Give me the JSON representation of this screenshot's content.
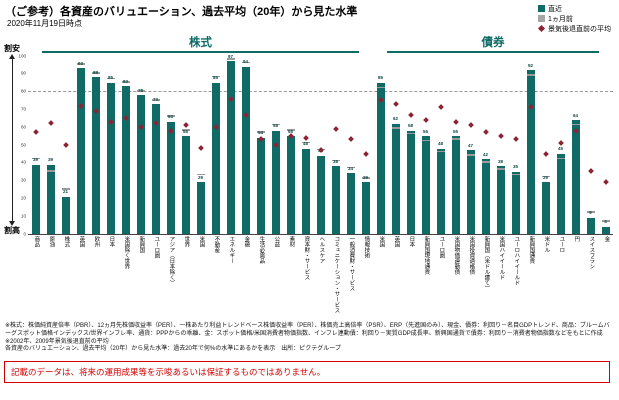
{
  "title": "（ご参考）各資産のバリュエーション、過去平均（20年）から見た水準",
  "date": "2020年11月19日時点",
  "legend": {
    "items": [
      {
        "label": "直近",
        "color": "#106b66",
        "shape": "square"
      },
      {
        "label": "1ヵ月前",
        "color": "#a6a6a6",
        "shape": "square"
      },
      {
        "label": "景気後退直前の平均",
        "color": "#8b2332",
        "shape": "diamond"
      }
    ]
  },
  "axis": {
    "cheap_label": "割安",
    "expensive_label": "割高",
    "ymin": 0,
    "ymax": 100,
    "ticks": [
      0,
      10,
      20,
      30,
      40,
      50,
      60,
      70,
      80,
      90,
      100
    ],
    "dashed_line": 80
  },
  "chart_data": {
    "type": "bar",
    "title": "各資産のバリュエーション、過去平均（20年）から見た水準",
    "ylim": [
      0,
      100
    ],
    "legend_position": "top-right",
    "series_legend": [
      "直近",
      "1ヵ月前",
      "景気後退直前の平均"
    ],
    "sections": [
      {
        "name": "株式",
        "bars": [
          {
            "label": "商品",
            "value": 39,
            "prev": 42,
            "recession": 56
          },
          {
            "label": "原油",
            "value": 39,
            "prev": 35,
            "recession": 61
          },
          {
            "label": "株式",
            "value": 21,
            "prev": 25,
            "recession": 49
          },
          {
            "label": "英国",
            "value": 93,
            "prev": 95,
            "recession": 71
          },
          {
            "label": "欧州",
            "value": 88,
            "prev": 90,
            "recession": 68
          },
          {
            "label": "日本",
            "value": 85,
            "prev": 87,
            "recession": 62
          },
          {
            "label": "米国除く世界",
            "value": 83,
            "prev": 85,
            "recession": 64
          },
          {
            "label": "新興国",
            "value": 78,
            "prev": 80,
            "recession": 59
          },
          {
            "label": "ユーロ圏",
            "value": 73,
            "prev": 75,
            "recession": 61
          },
          {
            "label": "アジア（日本除く）",
            "value": 63,
            "prev": 66,
            "recession": 57
          },
          {
            "label": "世界",
            "value": 55,
            "prev": 58,
            "recession": 60
          },
          {
            "label": "米国",
            "value": 29,
            "prev": 33,
            "recession": 47
          },
          {
            "label": "不動産",
            "value": 85,
            "prev": 88,
            "recession": 59
          },
          {
            "label": "エネルギー",
            "value": 97,
            "prev": 98,
            "recession": 75
          },
          {
            "label": "金融",
            "value": 94,
            "prev": 96,
            "recession": 66
          },
          {
            "label": "生活必需品",
            "value": 54,
            "prev": 57,
            "recession": 52
          },
          {
            "label": "公益",
            "value": 58,
            "prev": 61,
            "recession": 49
          },
          {
            "label": "素材",
            "value": 55,
            "prev": 58,
            "recession": 54
          },
          {
            "label": "資本財・サービス",
            "value": 48,
            "prev": 51,
            "recession": 53
          },
          {
            "label": "ヘルスケア",
            "value": 44,
            "prev": 47,
            "recession": 46
          },
          {
            "label": "コミュニケーション・サービス",
            "value": 38,
            "prev": 41,
            "recession": 58
          },
          {
            "label": "一般消費財・サービス",
            "value": 34,
            "prev": 37,
            "recession": 52
          },
          {
            "label": "情報技術",
            "value": 29,
            "prev": 31,
            "recession": 44
          }
        ]
      },
      {
        "name": "債券",
        "bars": [
          {
            "label": "米国",
            "value": 85,
            "prev": 82,
            "recession": 74
          },
          {
            "label": "英国",
            "value": 62,
            "prev": 59,
            "recession": 72
          },
          {
            "label": "日本",
            "value": 58,
            "prev": 56,
            "recession": 66
          },
          {
            "label": "新興国現地通貨",
            "value": 55,
            "prev": 52,
            "recession": 63
          },
          {
            "label": "ユーロ圏",
            "value": 48,
            "prev": 46,
            "recession": 70
          },
          {
            "label": "米国物価連動債",
            "value": 55,
            "prev": 53,
            "recession": 62
          },
          {
            "label": "米国投資適格債",
            "value": 47,
            "prev": 44,
            "recession": 60
          },
          {
            "label": "新興国（米ドル建て）",
            "value": 42,
            "prev": 40,
            "recession": 56
          },
          {
            "label": "米国ハイイールド",
            "value": 38,
            "prev": 36,
            "recession": 54
          },
          {
            "label": "ユーロハイイールド",
            "value": 35,
            "prev": 33,
            "recession": 52
          },
          {
            "label": "新興国通貨",
            "value": 92,
            "prev": 89,
            "recession": 70
          },
          {
            "label": "米ドル",
            "value": 29,
            "prev": 32,
            "recession": 44
          },
          {
            "label": "ユーロ",
            "value": 45,
            "prev": 42,
            "recession": 50
          },
          {
            "label": "円",
            "value": 64,
            "prev": 61,
            "recession": 57
          },
          {
            "label": "スイスフラン",
            "value": 9,
            "prev": 12,
            "recession": 34
          },
          {
            "label": "金",
            "value": 4,
            "prev": 7,
            "recession": 28
          }
        ]
      }
    ]
  },
  "footnotes": {
    "line1": "※株式：株価純資産倍率（PBR）、12ヵ月先株価収益率（PER）、一株あたり利益トレンドベース株価収益率（PER）、株価売上高倍率（PSR）、ERP（先進国のみ）、現金、債券：利回り－名目GDPトレンド、商品：ブルームバーグスポット価格インデックス/世界インフレ率、通貨：PPPからの乖離、金：スポット価格/米国消費者物価指数、インフレ連動債：利回り－実質GDP成長率、新興国通貨で債券：利回り－消費者物価指数などをもとに作成　※2002年、2009年景気後退直前の平均",
    "line2": "各資産のバリュエーション、過去平均（20年）から見た水準：過去20年で何%の水準にあるかを表示　出所：ピクテグループ"
  },
  "disclaimer": "記載のデータは、将来の運用成果等を示唆あるいは保証するものではありません。"
}
